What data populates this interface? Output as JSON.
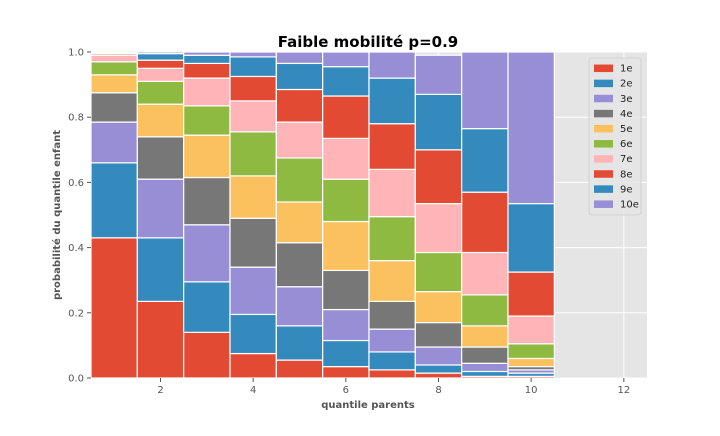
{
  "chart_data": {
    "type": "bar",
    "stacked": true,
    "title": "Faible mobilité p=0.9",
    "xlabel": "quantile parents",
    "ylabel": "probabilité du quantile enfant",
    "xlim": [
      0.5,
      12.5
    ],
    "ylim": [
      0.0,
      1.0
    ],
    "xticks": [
      2,
      4,
      6,
      8,
      10,
      12
    ],
    "xtick_labels": [
      "2",
      "4",
      "6",
      "8",
      "10",
      "12"
    ],
    "yticks": [
      0.0,
      0.2,
      0.4,
      0.6,
      0.8,
      1.0
    ],
    "ytick_labels": [
      "0.0",
      "0.2",
      "0.4",
      "0.6",
      "0.8",
      "1.0"
    ],
    "grid": true,
    "legend_position": "top-right",
    "categories": [
      1,
      2,
      3,
      4,
      5,
      6,
      7,
      8,
      9,
      10
    ],
    "series": [
      {
        "name": "1e",
        "color": "#E24A33",
        "values": [
          0.43,
          0.235,
          0.14,
          0.075,
          0.055,
          0.035,
          0.025,
          0.015,
          0.005,
          0.005
        ]
      },
      {
        "name": "2e",
        "color": "#348ABD",
        "values": [
          0.23,
          0.195,
          0.155,
          0.12,
          0.105,
          0.08,
          0.055,
          0.025,
          0.015,
          0.01
        ]
      },
      {
        "name": "3e",
        "color": "#988ED5",
        "values": [
          0.125,
          0.18,
          0.175,
          0.145,
          0.12,
          0.095,
          0.07,
          0.055,
          0.025,
          0.01
        ]
      },
      {
        "name": "4e",
        "color": "#777777",
        "values": [
          0.09,
          0.13,
          0.145,
          0.15,
          0.135,
          0.12,
          0.085,
          0.075,
          0.05,
          0.01
        ]
      },
      {
        "name": "5e",
        "color": "#FBC15E",
        "values": [
          0.055,
          0.1,
          0.13,
          0.13,
          0.125,
          0.15,
          0.125,
          0.095,
          0.065,
          0.025
        ]
      },
      {
        "name": "6e",
        "color": "#8EBA42",
        "values": [
          0.04,
          0.07,
          0.09,
          0.135,
          0.135,
          0.13,
          0.135,
          0.12,
          0.095,
          0.045
        ]
      },
      {
        "name": "7e",
        "color": "#FFB5B8",
        "values": [
          0.02,
          0.04,
          0.085,
          0.095,
          0.11,
          0.125,
          0.145,
          0.15,
          0.13,
          0.085
        ]
      },
      {
        "name": "8e",
        "color": "#E24A33",
        "values": [
          0.005,
          0.025,
          0.045,
          0.075,
          0.1,
          0.13,
          0.14,
          0.165,
          0.185,
          0.135
        ]
      },
      {
        "name": "9e",
        "color": "#348ABD",
        "values": [
          0.003,
          0.02,
          0.025,
          0.06,
          0.08,
          0.09,
          0.14,
          0.17,
          0.195,
          0.21
        ]
      },
      {
        "name": "10e",
        "color": "#988ED5",
        "values": [
          0.002,
          0.005,
          0.01,
          0.015,
          0.035,
          0.045,
          0.08,
          0.12,
          0.235,
          0.465
        ]
      }
    ]
  }
}
